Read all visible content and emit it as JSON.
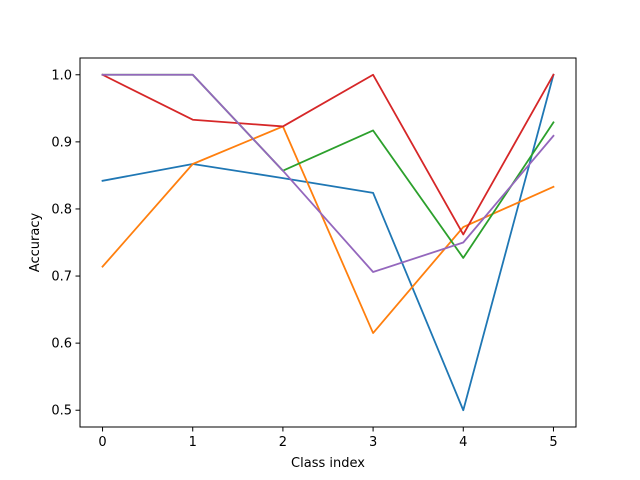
{
  "chart_data": {
    "type": "line",
    "title": "",
    "xlabel": "Class index",
    "ylabel": "Accuracy",
    "x": [
      0,
      1,
      2,
      3,
      4,
      5
    ],
    "x_ticks": [
      "0",
      "1",
      "2",
      "3",
      "4",
      "5"
    ],
    "y_ticks": [
      "0.5",
      "0.6",
      "0.7",
      "0.8",
      "0.9",
      "1.0"
    ],
    "xlim": [
      -0.25,
      5.25
    ],
    "ylim": [
      0.475,
      1.025
    ],
    "grid": false,
    "legend": "none",
    "series": [
      {
        "color": "#1f77b4",
        "values": [
          0.842,
          0.867,
          0.846,
          0.824,
          0.5,
          1.0
        ]
      },
      {
        "color": "#ff7f0e",
        "values": [
          0.714,
          0.867,
          0.923,
          0.615,
          0.773,
          0.833
        ]
      },
      {
        "color": "#2ca02c",
        "values": [
          1.0,
          1.0,
          0.857,
          0.917,
          0.727,
          0.929
        ]
      },
      {
        "color": "#d62728",
        "values": [
          1.0,
          0.933,
          0.923,
          1.0,
          0.762,
          1.0
        ]
      },
      {
        "color": "#9467bd",
        "values": [
          1.0,
          1.0,
          0.857,
          0.706,
          0.75,
          0.909
        ]
      }
    ]
  }
}
